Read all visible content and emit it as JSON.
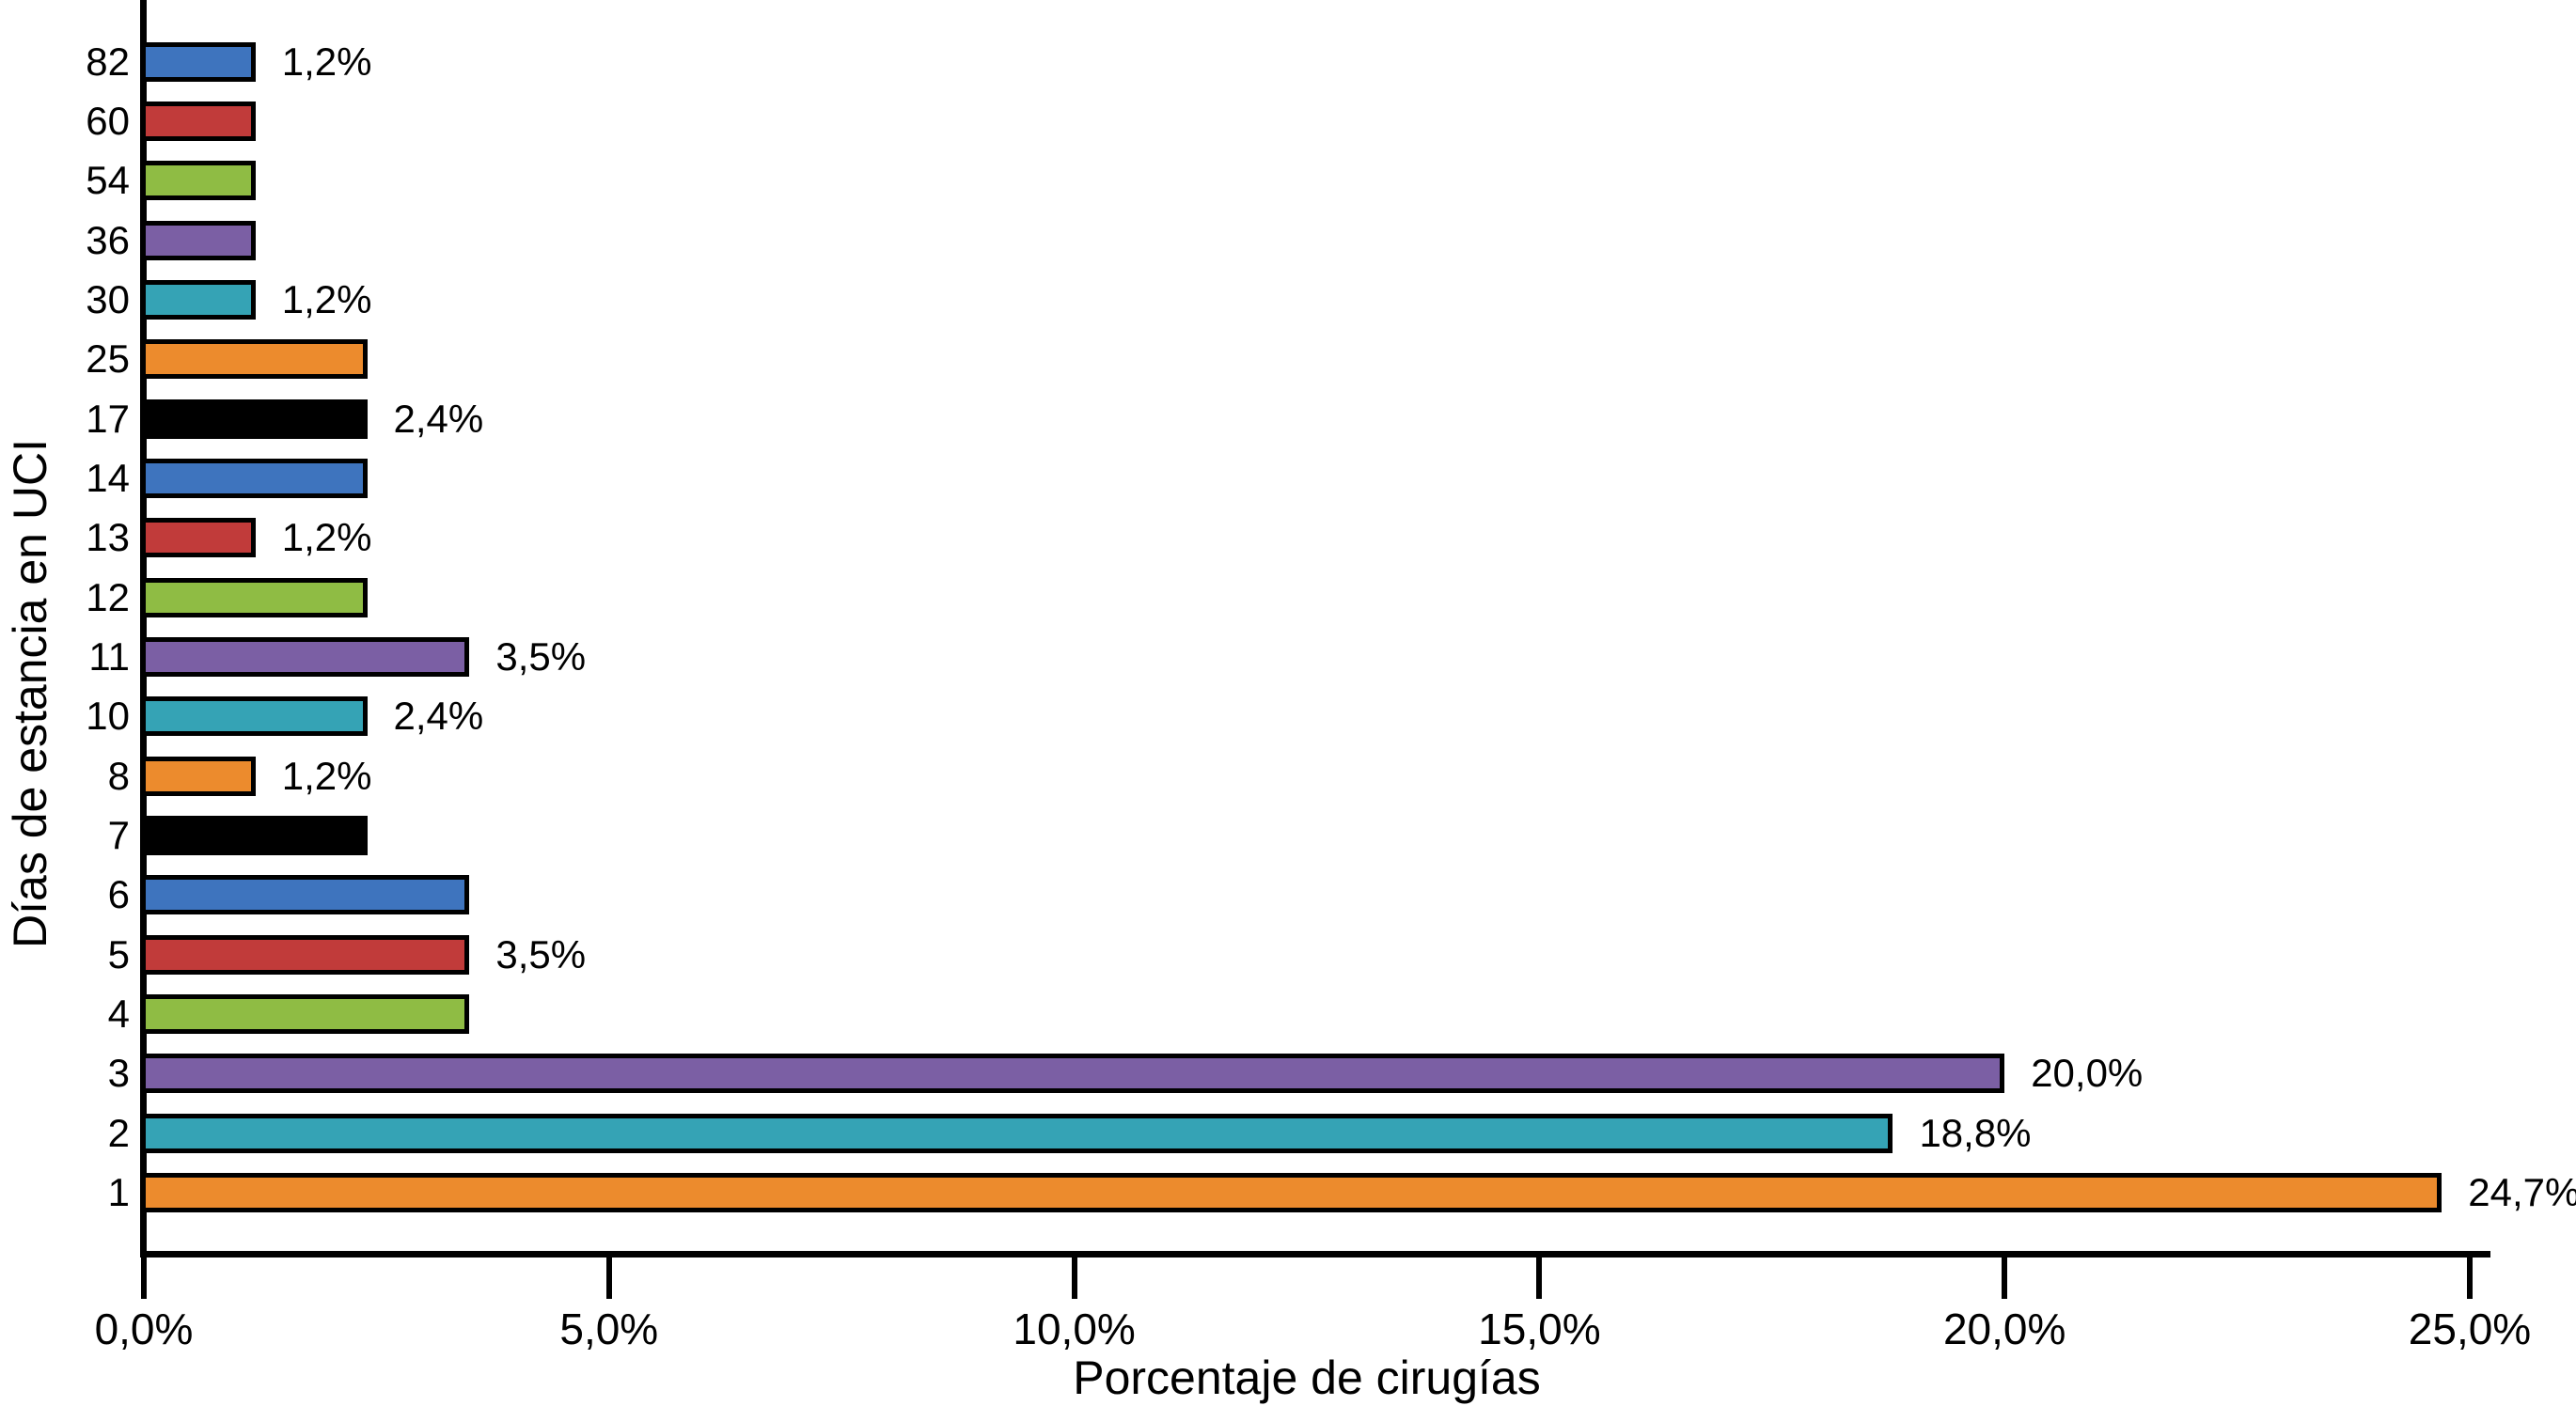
{
  "chart_data": {
    "type": "bar",
    "orientation": "horizontal",
    "title": "",
    "xlabel": "Porcentaje de cirugías",
    "ylabel": "Días de estancia en UCI",
    "categories": [
      "82",
      "60",
      "54",
      "36",
      "30",
      "25",
      "17",
      "14",
      "13",
      "12",
      "11",
      "10",
      "8",
      "7",
      "6",
      "5",
      "4",
      "3",
      "2",
      "1"
    ],
    "values": [
      1.2,
      1.2,
      1.2,
      1.2,
      1.2,
      2.4,
      2.4,
      2.4,
      1.2,
      2.4,
      3.5,
      2.4,
      1.2,
      2.4,
      3.5,
      3.5,
      3.5,
      20.0,
      18.8,
      24.7
    ],
    "bar_labels": [
      "1,2%",
      "",
      "",
      "",
      "1,2%",
      "",
      "2,4%",
      "",
      "1,2%",
      "",
      "3,5%",
      "2,4%",
      "1,2%",
      "",
      "",
      "3,5%",
      "",
      "20,0%",
      "18,8%",
      "24,7%"
    ],
    "bar_colors": [
      "#3E74BE",
      "#C13B3A",
      "#8FBC44",
      "#7B5FA4",
      "#35A3B5",
      "#EC8B2D",
      "#000000",
      "#3E74BE",
      "#C13B3A",
      "#8FBC44",
      "#7B5FA4",
      "#35A3B5",
      "#EC8B2D",
      "#000000",
      "#3E74BE",
      "#C13B3A",
      "#8FBC44",
      "#7B5FA4",
      "#35A3B5",
      "#EC8B2D"
    ],
    "color_cycle": [
      "#3E74BE",
      "#C13B3A",
      "#8FBC44",
      "#7B5FA4",
      "#35A3B5",
      "#EC8B2D",
      "#000000"
    ],
    "x_ticks": [
      "0,0%",
      "5,0%",
      "10,0%",
      "15,0%",
      "20,0%",
      "25,0%"
    ],
    "x_tick_values": [
      0,
      5,
      10,
      15,
      20,
      25
    ],
    "xlim": [
      0,
      25.3
    ],
    "grid": false,
    "legend": null,
    "axis_color": "#000000",
    "background_color": "#FFFFFF",
    "bar_border_color": "#000000"
  }
}
